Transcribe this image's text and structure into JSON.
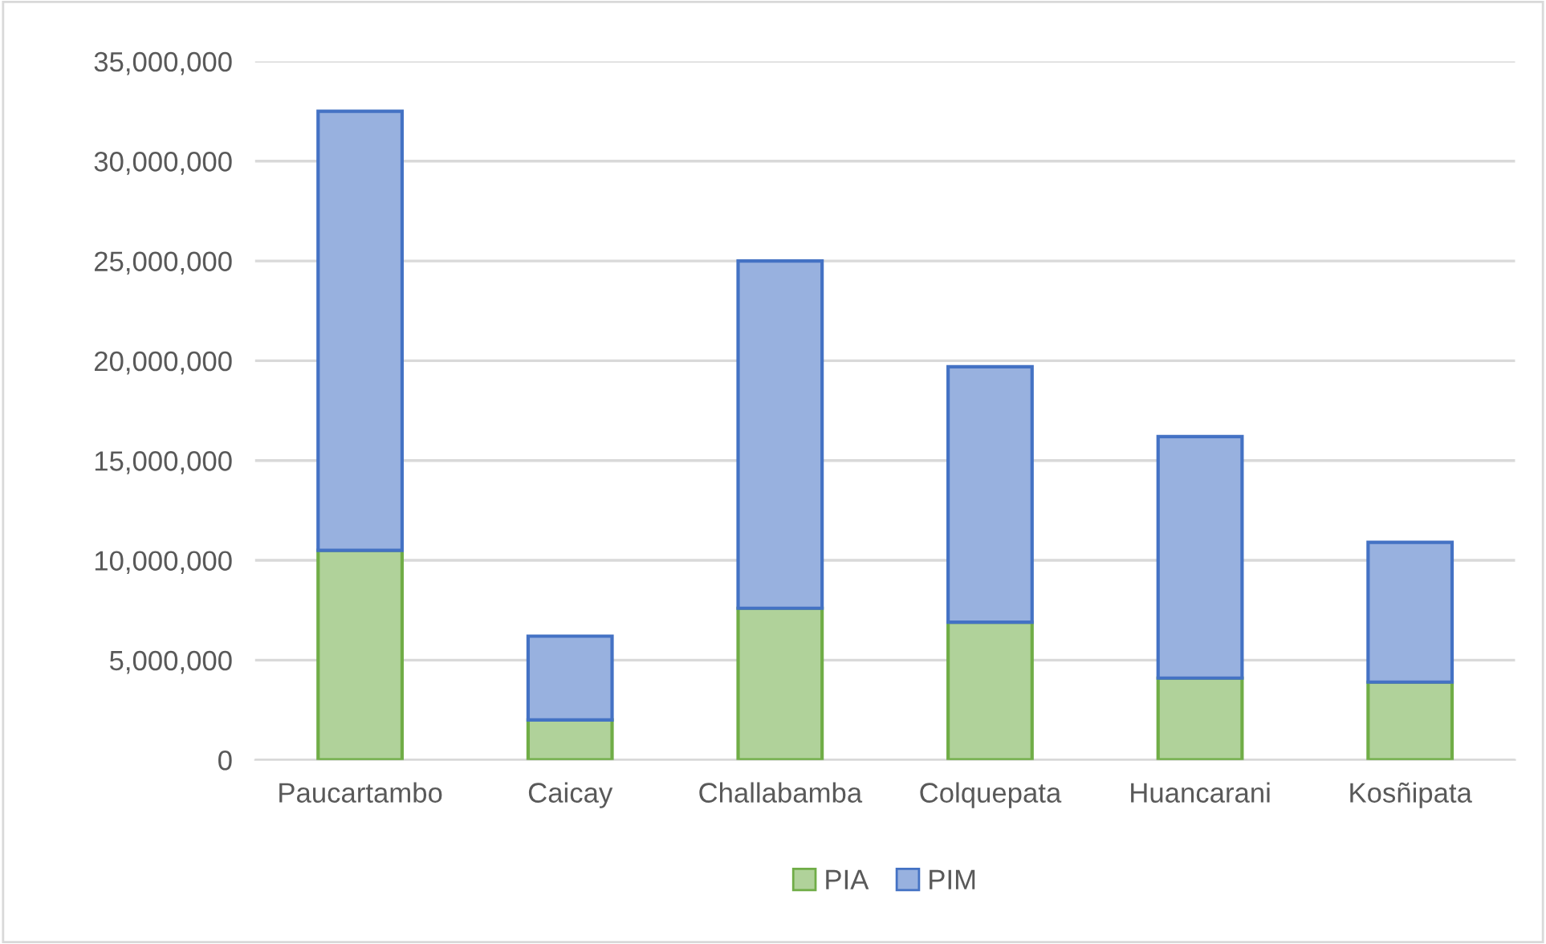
{
  "chart_data": {
    "type": "bar",
    "stacked": true,
    "categories": [
      "Paucartambo",
      "Caicay",
      "Challabamba",
      "Colquepata",
      "Huancarani",
      "Kosñipata"
    ],
    "series": [
      {
        "name": "PIA",
        "color": "#70ad47",
        "values": [
          10500000,
          2000000,
          7600000,
          6900000,
          4100000,
          3900000
        ]
      },
      {
        "name": "PIM",
        "color": "#4472c4",
        "values": [
          22000000,
          4200000,
          17400000,
          12800000,
          12100000,
          7000000
        ]
      }
    ],
    "ylim": [
      0,
      35000000
    ],
    "yticks": [
      {
        "value": 0,
        "label": "0"
      },
      {
        "value": 5000000,
        "label": "5,000,000"
      },
      {
        "value": 10000000,
        "label": "10,000,000"
      },
      {
        "value": 15000000,
        "label": "15,000,000"
      },
      {
        "value": 20000000,
        "label": "20,000,000"
      },
      {
        "value": 25000000,
        "label": "25,000,000"
      },
      {
        "value": 30000000,
        "label": "30,000,000"
      },
      {
        "value": 35000000,
        "label": "35,000,000"
      }
    ],
    "grid": "y",
    "legend": "bottom"
  }
}
